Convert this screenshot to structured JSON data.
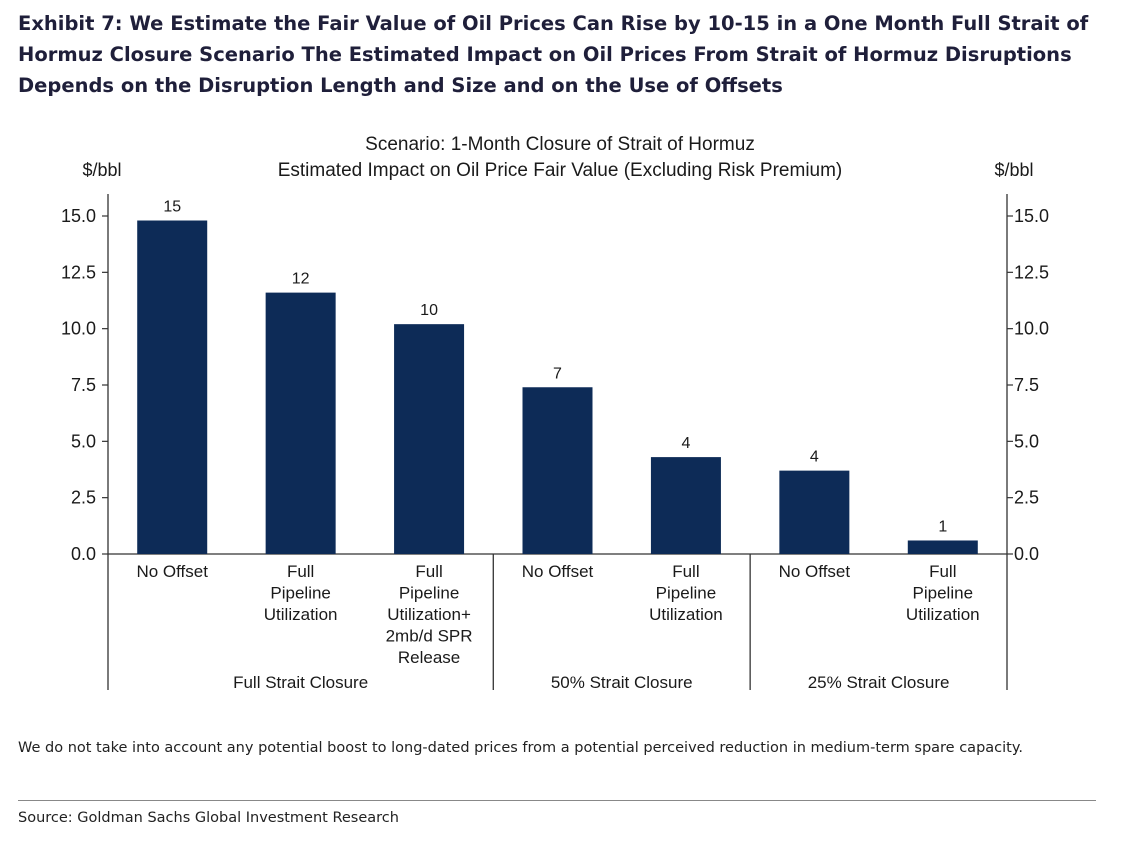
{
  "exhibit": {
    "title": "Exhibit 7: We Estimate the Fair Value of Oil Prices Can Rise by 10-15 in a One Month Full Strait of Hormuz Closure Scenario The Estimated Impact on Oil Prices From Strait of Hormuz Disruptions Depends on the Disruption Length and Size and on the Use of Offsets"
  },
  "chart_data": {
    "type": "bar",
    "title": "Scenario: 1-Month Closure of Strait of Hormuz",
    "subtitle": "Estimated Impact on Oil Price Fair Value (Excluding Risk Premium)",
    "ylabel_left": "$/bbl",
    "ylabel_right": "$/bbl",
    "ylim": [
      0,
      15
    ],
    "yticks": [
      "0.0",
      "2.5",
      "5.0",
      "7.5",
      "10.0",
      "12.5",
      "15.0"
    ],
    "grid": false,
    "bar_color": "#0d2b57",
    "categories": [
      [
        "No Offset"
      ],
      [
        "Full",
        "Pipeline",
        "Utilization"
      ],
      [
        "Full",
        "Pipeline",
        "Utilization+",
        "2mb/d SPR",
        "Release"
      ],
      [
        "No Offset"
      ],
      [
        "Full",
        "Pipeline",
        "Utilization"
      ],
      [
        "No Offset"
      ],
      [
        "Full",
        "Pipeline",
        "Utilization"
      ]
    ],
    "values": [
      14.8,
      11.6,
      10.2,
      7.4,
      4.3,
      3.7,
      0.6
    ],
    "data_labels": [
      "15",
      "12",
      "10",
      "7",
      "4",
      "4",
      "1"
    ],
    "groups": [
      {
        "label": "Full Strait Closure",
        "count": 3
      },
      {
        "label": "50% Strait Closure",
        "count": 2
      },
      {
        "label": "25% Strait Closure",
        "count": 2
      }
    ]
  },
  "footer": {
    "note": "We do not take into account any potential boost to long-dated prices from a potential perceived reduction in medium-term spare capacity.",
    "source": "Source: Goldman Sachs Global Investment Research"
  }
}
